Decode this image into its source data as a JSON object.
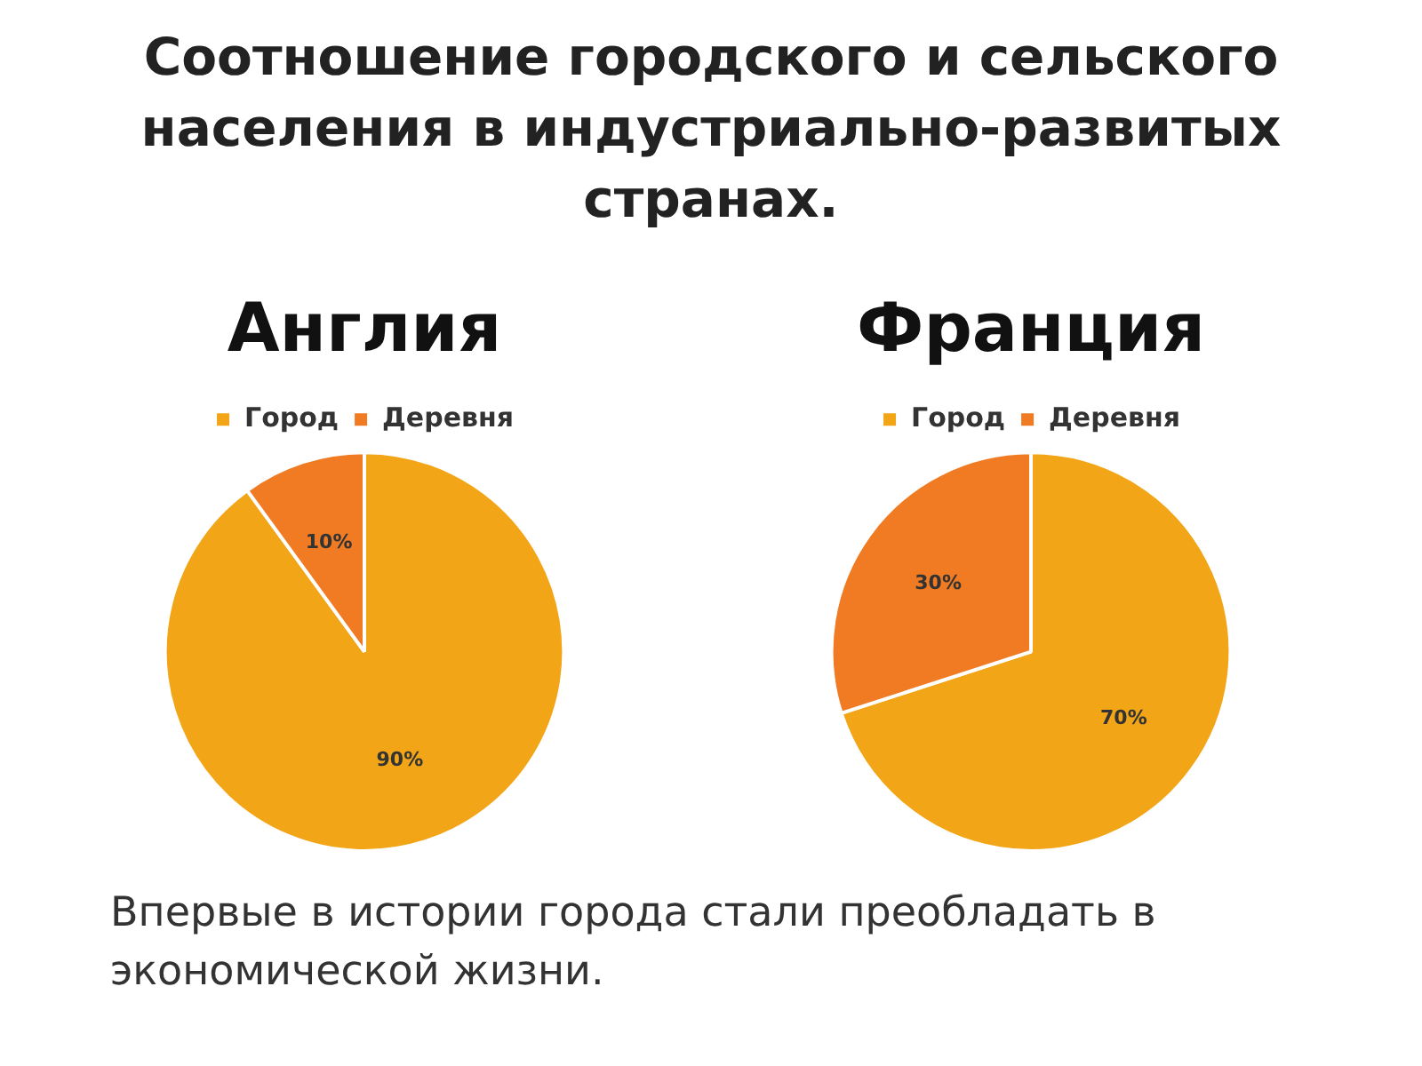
{
  "chart_data": [
    {
      "type": "pie",
      "title": "Англия",
      "categories": [
        "Город",
        "Деревня"
      ],
      "values": [
        90,
        10
      ],
      "value_labels": [
        "90%",
        "10%"
      ],
      "colors": [
        "#f2a516",
        "#f07b22"
      ],
      "legend": "top",
      "annotations": [
        "Соотношение городского и сельского населения в индустриально-развитых странах."
      ]
    },
    {
      "type": "pie",
      "title": "Франция",
      "categories": [
        "Город",
        "Деревня"
      ],
      "values": [
        70,
        30
      ],
      "value_labels": [
        "70%",
        "30%"
      ],
      "colors": [
        "#f2a516",
        "#f07b22"
      ],
      "legend": "top",
      "annotations": [
        "Впервые в истории города стали преобладать в экономической жизни."
      ]
    }
  ]
}
